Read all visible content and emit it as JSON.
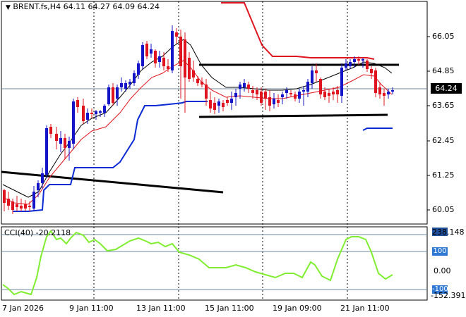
{
  "header": {
    "symbol_line": "BRENT.fs,H4  64.11 64.27 64.09 64.24",
    "triangle_icon": "down-triangle-icon"
  },
  "price_axis": {
    "ticks": [
      "66.05",
      "64.85",
      "63.65",
      "62.45",
      "61.25",
      "60.05"
    ],
    "current_price": "64.24"
  },
  "cci_panel": {
    "title": "CCI(40) -20.2118",
    "ticks": [
      "238.148",
      "100",
      "0.00",
      "-100",
      "-152.391"
    ]
  },
  "time_axis": {
    "labels": [
      "7 Jan 2026",
      "9 Jan 11:00",
      "13 Jan 11:00",
      "15 Jan 11:00",
      "19 Jan 09:00",
      "21 Jan 11:00"
    ]
  },
  "colors": {
    "bull": "#1414c8",
    "bear": "#e0141e",
    "ma_fast": "#e0141e",
    "ma_slow": "#000000",
    "ma_blue": "#0a2ad6",
    "resistance_red": "#e0141e",
    "cci_line": "#80ee30",
    "level_line": "#6f8aa0"
  }
}
